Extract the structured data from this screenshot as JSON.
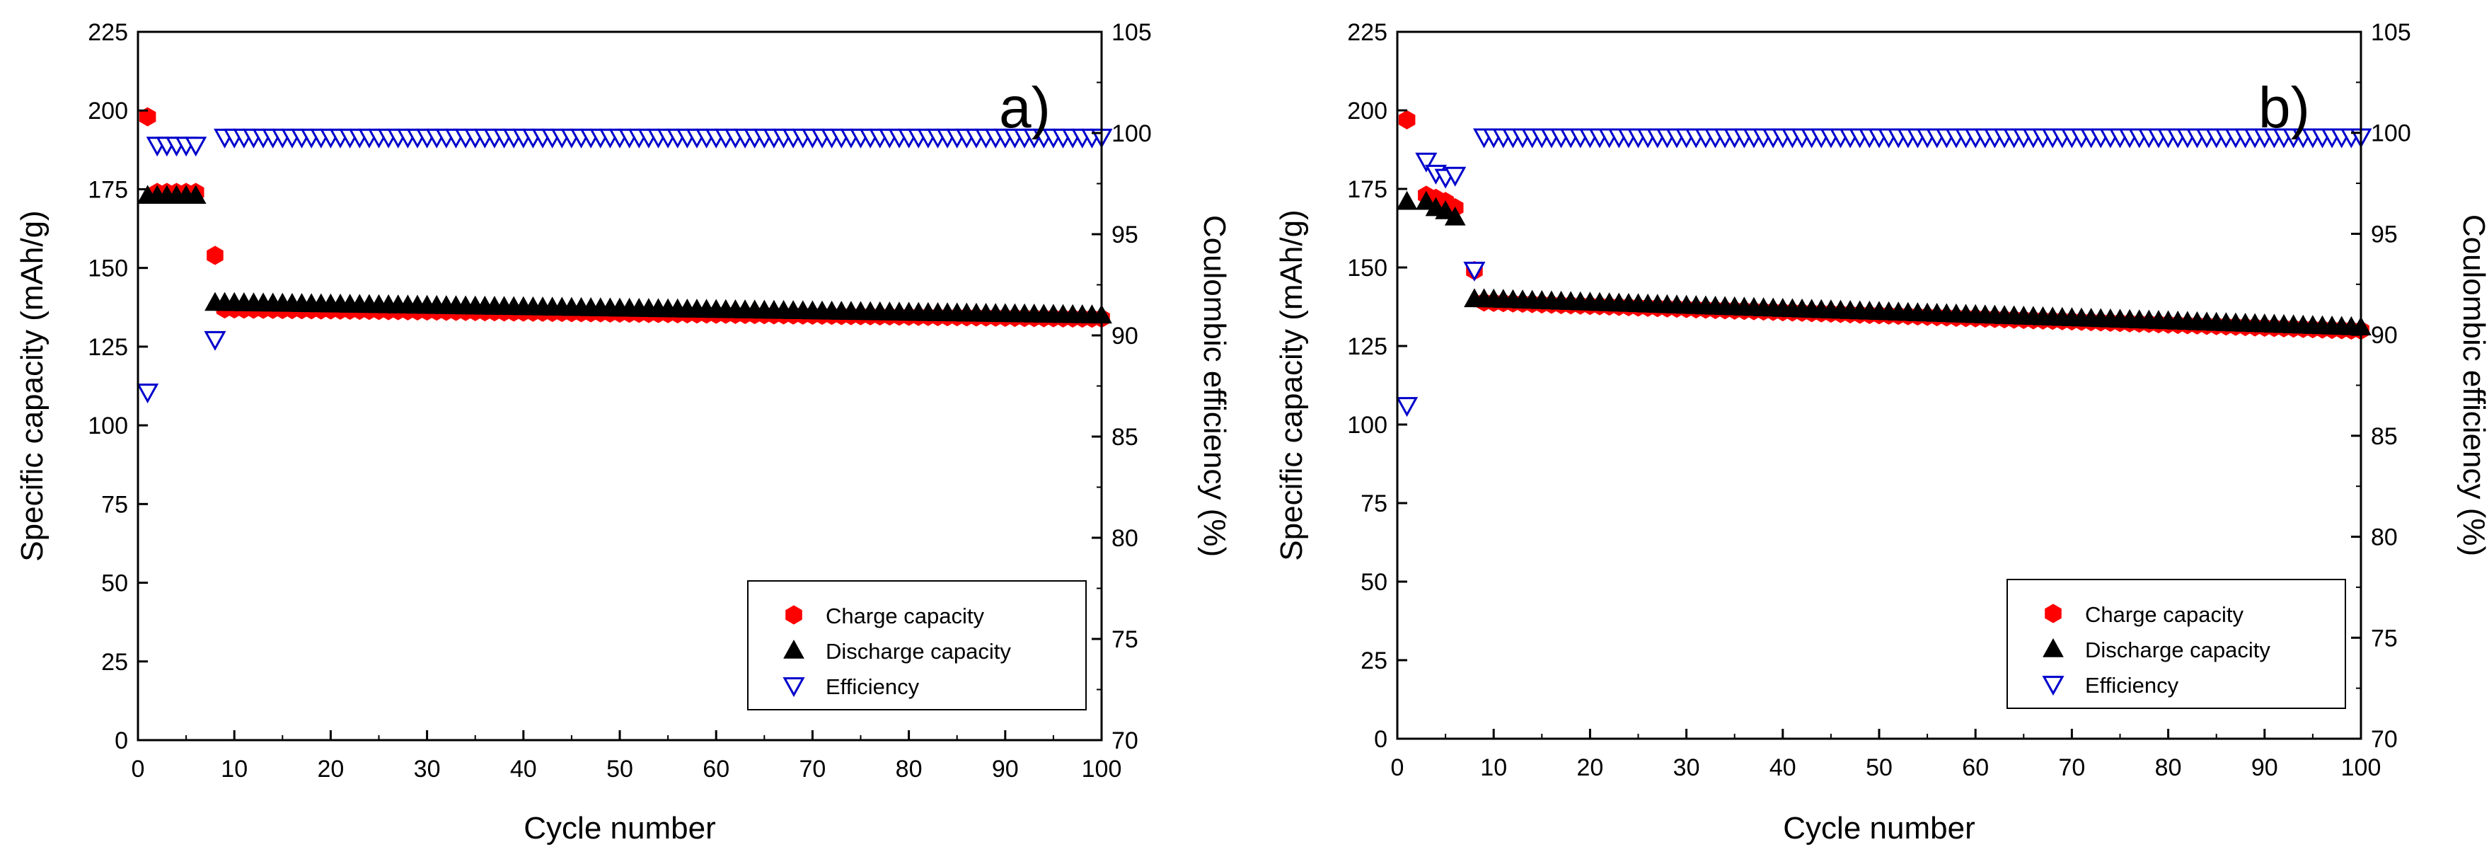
{
  "chart_data": [
    {
      "type": "scatter",
      "panel_label": "a)",
      "xlabel": "Cycle number",
      "ylabel": "Specific capacity (mAh/g)",
      "y2label": "Coulombic efficiency (%)",
      "xlim": [
        0,
        100
      ],
      "ylim": [
        0,
        225
      ],
      "y2lim": [
        70,
        105
      ],
      "xticks": [
        "0",
        "10",
        "20",
        "30",
        "40",
        "50",
        "60",
        "70",
        "80",
        "90",
        "100"
      ],
      "yticks": [
        "0",
        "25",
        "50",
        "75",
        "100",
        "125",
        "150",
        "175",
        "200",
        "225"
      ],
      "y2ticks": [
        "70",
        "75",
        "80",
        "85",
        "90",
        "95",
        "100",
        "105"
      ],
      "legend": [
        "Charge capacity",
        "Discharge capacity",
        "Efficiency"
      ],
      "series": [
        {
          "name": "Charge capacity",
          "axis": "left",
          "color": "#ff0000",
          "marker": "hexagon",
          "x": [
            1,
            2,
            3,
            4,
            5,
            6,
            8
          ],
          "y": [
            198,
            174,
            174,
            174,
            174,
            174,
            154
          ],
          "trend": {
            "from": 9,
            "to": 100,
            "y_start": 137,
            "y_end": 134
          }
        },
        {
          "name": "Discharge capacity",
          "axis": "left",
          "color": "#000000",
          "marker": "triangle-up",
          "x": [
            1,
            2,
            3,
            4,
            5,
            6,
            8
          ],
          "y": [
            173,
            173,
            173,
            173,
            173,
            173,
            139
          ],
          "trend": {
            "from": 9,
            "to": 100,
            "y_start": 139,
            "y_end": 135
          }
        },
        {
          "name": "Efficiency",
          "axis": "right",
          "color": "#0000cc",
          "marker": "triangle-down-open",
          "x": [
            1,
            2,
            3,
            4,
            5,
            6,
            8
          ],
          "y": [
            87.2,
            99.4,
            99.4,
            99.4,
            99.4,
            99.4,
            89.8
          ],
          "trend": {
            "from": 9,
            "to": 100,
            "y_start": 99.8,
            "y_end": 99.8
          }
        }
      ]
    },
    {
      "type": "scatter",
      "panel_label": "b)",
      "xlabel": "Cycle number",
      "ylabel": "Specific capacity (mAh/g)",
      "y2label": "Coulombic efficiency (%)",
      "xlim": [
        0,
        100
      ],
      "ylim": [
        0,
        225
      ],
      "y2lim": [
        70,
        105
      ],
      "xticks": [
        "0",
        "10",
        "20",
        "30",
        "40",
        "50",
        "60",
        "70",
        "80",
        "90",
        "100"
      ],
      "yticks": [
        "0",
        "25",
        "50",
        "75",
        "100",
        "125",
        "150",
        "175",
        "200",
        "225"
      ],
      "y2ticks": [
        "70",
        "75",
        "80",
        "85",
        "90",
        "95",
        "100",
        "105"
      ],
      "legend": [
        "Charge capacity",
        "Discharge capacity",
        "Efficiency"
      ],
      "series": [
        {
          "name": "Charge capacity",
          "axis": "left",
          "color": "#ff0000",
          "marker": "hexagon",
          "x": [
            1,
            3,
            4,
            5,
            6,
            8
          ],
          "y": [
            197,
            173,
            172,
            171,
            169,
            149
          ],
          "trend": {
            "from": 9,
            "to": 100,
            "y_start": 139,
            "y_end": 130
          }
        },
        {
          "name": "Discharge capacity",
          "axis": "left",
          "color": "#000000",
          "marker": "triangle-up",
          "x": [
            1,
            3,
            4,
            5,
            6,
            8
          ],
          "y": [
            171,
            171,
            169,
            168,
            166,
            140
          ],
          "trend": {
            "from": 9,
            "to": 100,
            "y_start": 140,
            "y_end": 131
          }
        },
        {
          "name": "Efficiency",
          "axis": "right",
          "color": "#0000cc",
          "marker": "triangle-down-open",
          "x": [
            1,
            3,
            4,
            5,
            6,
            8
          ],
          "y": [
            86.5,
            98.6,
            98.0,
            97.8,
            97.9,
            93.2
          ],
          "trend": {
            "from": 9,
            "to": 100,
            "y_start": 99.8,
            "y_end": 99.8
          }
        }
      ]
    }
  ]
}
